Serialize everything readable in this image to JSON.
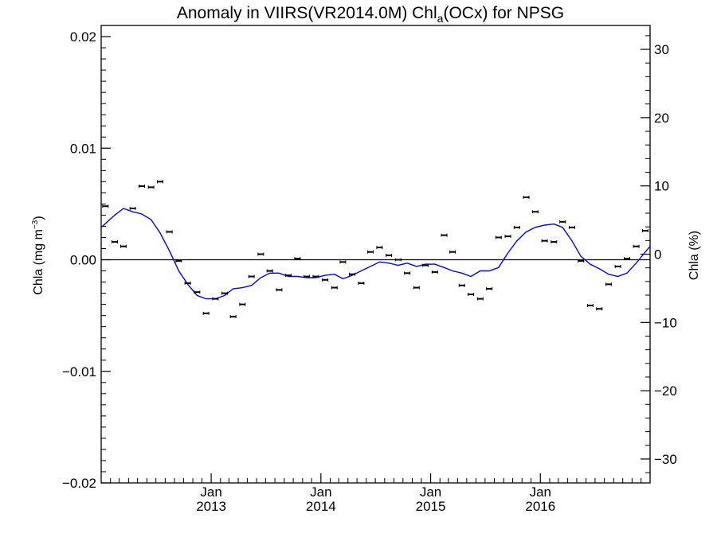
{
  "chart_data": {
    "type": "scatter",
    "title_main": "Anomaly in VIIRS(VR2014.0M) Chl",
    "title_sub": "a",
    "title_tail": "(OCx) for NPSG",
    "ylabel_left_main": "Chla (mg m",
    "ylabel_left_sup": "−3",
    "ylabel_left_tail": ")",
    "ylabel_right": "Chla (%)",
    "xlim": [
      "2012-01-01",
      "2016-12-31"
    ],
    "ylim_left": [
      -0.02,
      0.021
    ],
    "ylim_right": [
      -33.5,
      33.5
    ],
    "yticks_left": [
      {
        "value": 0.02,
        "label": "0.02"
      },
      {
        "value": 0.01,
        "label": "0.01"
      },
      {
        "value": 0.0,
        "label": "0.00"
      },
      {
        "value": -0.01,
        "label": "−0.01"
      },
      {
        "value": -0.02,
        "label": "−0.02"
      }
    ],
    "yticks_right": [
      {
        "value": 30,
        "label": "30"
      },
      {
        "value": 20,
        "label": "20"
      },
      {
        "value": 10,
        "label": "10"
      },
      {
        "value": 0,
        "label": "0"
      },
      {
        "value": -10,
        "label": "−10"
      },
      {
        "value": -20,
        "label": "−20"
      },
      {
        "value": -30,
        "label": "−30"
      }
    ],
    "xticks": [
      {
        "date": "2013-01-01",
        "month": "Jan",
        "year": "2013"
      },
      {
        "date": "2014-01-01",
        "month": "Jan",
        "year": "2014"
      },
      {
        "date": "2015-01-01",
        "month": "Jan",
        "year": "2015"
      },
      {
        "date": "2016-01-01",
        "month": "Jan",
        "year": "2016"
      }
    ],
    "zero_line": 0.0,
    "series": [
      {
        "kind": "monthly-anomaly-points",
        "color": "#000000",
        "x": [
          "2012-01-15",
          "2012-02-15",
          "2012-03-15",
          "2012-04-15",
          "2012-05-15",
          "2012-06-15",
          "2012-07-15",
          "2012-08-15",
          "2012-09-15",
          "2012-10-15",
          "2012-11-15",
          "2012-12-15",
          "2013-01-15",
          "2013-02-15",
          "2013-03-15",
          "2013-04-15",
          "2013-05-15",
          "2013-06-15",
          "2013-07-15",
          "2013-08-15",
          "2013-09-15",
          "2013-10-15",
          "2013-11-15",
          "2013-12-15",
          "2014-01-15",
          "2014-02-15",
          "2014-03-15",
          "2014-04-15",
          "2014-05-15",
          "2014-06-15",
          "2014-07-15",
          "2014-08-15",
          "2014-09-15",
          "2014-10-15",
          "2014-11-15",
          "2014-12-15",
          "2015-01-15",
          "2015-02-15",
          "2015-03-15",
          "2015-04-15",
          "2015-05-15",
          "2015-06-15",
          "2015-07-15",
          "2015-08-15",
          "2015-09-15",
          "2015-10-15",
          "2015-11-15",
          "2015-12-15",
          "2016-01-15",
          "2016-02-15",
          "2016-03-15",
          "2016-04-15",
          "2016-05-15",
          "2016-06-15",
          "2016-07-15",
          "2016-08-15",
          "2016-09-15",
          "2016-10-15",
          "2016-11-15",
          "2016-12-15"
        ],
        "y": [
          0.0048,
          0.0016,
          0.0012,
          0.0046,
          0.0066,
          0.0065,
          0.007,
          0.0025,
          -0.0001,
          -0.0021,
          -0.0029,
          -0.0048,
          -0.0035,
          -0.003,
          -0.0051,
          -0.004,
          -0.0015,
          0.0005,
          -0.001,
          -0.0027,
          -0.0014,
          0.0001,
          -0.0015,
          -0.0015,
          -0.0018,
          -0.0025,
          -0.0002,
          -0.0013,
          -0.0021,
          0.0007,
          0.0011,
          0.0004,
          0.0,
          -0.0012,
          -0.0025,
          -0.0005,
          -0.0011,
          0.0022,
          0.0007,
          -0.0023,
          -0.0031,
          -0.0035,
          -0.0026,
          0.002,
          0.0021,
          0.0029,
          0.0056,
          0.0043,
          0.0017,
          0.0016,
          0.0034,
          0.0029,
          -0.0001,
          -0.0041,
          -0.0044,
          -0.0022,
          -0.0006,
          0.0001,
          0.0012,
          0.0026
        ]
      },
      {
        "kind": "smoothed-anomaly-line",
        "color": "#0000ff",
        "x": [
          "2012-01-01",
          "2012-02-15",
          "2012-03-15",
          "2012-04-15",
          "2012-05-15",
          "2012-06-15",
          "2012-07-15",
          "2012-08-15",
          "2012-09-15",
          "2012-10-15",
          "2012-11-15",
          "2012-12-15",
          "2013-01-15",
          "2013-02-15",
          "2013-03-15",
          "2013-04-15",
          "2013-05-15",
          "2013-06-15",
          "2013-07-15",
          "2013-08-15",
          "2013-09-15",
          "2013-10-15",
          "2013-11-15",
          "2013-12-15",
          "2014-01-15",
          "2014-02-15",
          "2014-03-15",
          "2014-04-15",
          "2014-05-15",
          "2014-06-15",
          "2014-07-15",
          "2014-08-15",
          "2014-09-15",
          "2014-10-15",
          "2014-11-15",
          "2014-12-15",
          "2015-01-15",
          "2015-02-15",
          "2015-03-15",
          "2015-04-15",
          "2015-05-15",
          "2015-06-15",
          "2015-07-15",
          "2015-08-15",
          "2015-09-15",
          "2015-10-15",
          "2015-11-15",
          "2015-12-15",
          "2016-01-15",
          "2016-02-15",
          "2016-03-15",
          "2016-04-15",
          "2016-05-15",
          "2016-06-15",
          "2016-07-15",
          "2016-08-15",
          "2016-09-15",
          "2016-10-15",
          "2016-11-15",
          "2016-12-15",
          "2016-12-31"
        ],
        "y": [
          0.0029,
          0.004,
          0.0046,
          0.0043,
          0.0041,
          0.0036,
          0.0024,
          0.0008,
          -0.001,
          -0.0022,
          -0.0032,
          -0.0035,
          -0.0035,
          -0.0032,
          -0.0026,
          -0.0025,
          -0.0023,
          -0.0016,
          -0.0012,
          -0.0012,
          -0.0015,
          -0.0015,
          -0.0016,
          -0.0016,
          -0.0014,
          -0.0013,
          -0.0017,
          -0.0014,
          -0.001,
          -0.0006,
          -0.0002,
          -0.0003,
          -0.0005,
          -0.0003,
          -0.0006,
          -0.0004,
          -0.0004,
          -0.0007,
          -0.001,
          -0.0012,
          -0.0015,
          -0.001,
          -0.001,
          -0.0007,
          0.0006,
          0.0017,
          0.0025,
          0.0029,
          0.0031,
          0.0032,
          0.0029,
          0.0017,
          0.0003,
          -0.0004,
          -0.0008,
          -0.0013,
          -0.0015,
          -0.0012,
          -0.0003,
          0.0007,
          0.0012
        ]
      }
    ]
  }
}
